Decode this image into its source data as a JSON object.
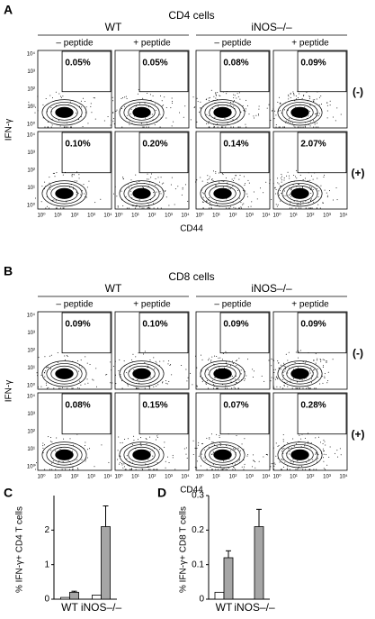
{
  "panels": [
    {
      "label": "A",
      "title": "CD4 cells",
      "groups": [
        "WT",
        "iNOS–/–"
      ],
      "conditions": [
        "– peptide",
        "+ peptide",
        "– peptide",
        "+ peptide"
      ],
      "rows": [
        {
          "label": "(-)",
          "percents": [
            "0.05%",
            "0.05%",
            "0.08%",
            "0.09%"
          ]
        },
        {
          "label": "(+)",
          "percents": [
            "0.10%",
            "0.20%",
            "0.14%",
            "2.07%"
          ]
        }
      ],
      "y_label": "IFN-γ",
      "x_label": "CD44",
      "ticks": [
        "10⁰",
        "10¹",
        "10²",
        "10³",
        "10⁴"
      ]
    },
    {
      "label": "B",
      "title": "CD8 cells",
      "groups": [
        "WT",
        "iNOS–/–"
      ],
      "conditions": [
        "– peptide",
        "+ peptide",
        "– peptide",
        "+ peptide"
      ],
      "rows": [
        {
          "label": "(-)",
          "percents": [
            "0.09%",
            "0.10%",
            "0.09%",
            "0.09%"
          ]
        },
        {
          "label": "(+)",
          "percents": [
            "0.08%",
            "0.15%",
            "0.07%",
            "0.28%"
          ]
        }
      ],
      "y_label": "IFN-γ",
      "x_label": "CD44",
      "ticks": [
        "10⁰",
        "10¹",
        "10²",
        "10³",
        "10⁴"
      ]
    }
  ],
  "chart_data": [
    {
      "type": "bar",
      "label": "C",
      "y_label": "% IFN-γ+ CD4 T cells",
      "categories": [
        "WT",
        "iNOS–/–"
      ],
      "series": [
        {
          "color": "#ffffff",
          "values": [
            0.05,
            0.12
          ],
          "errors": [
            null,
            null
          ]
        },
        {
          "color": "#a6a6a6",
          "values": [
            0.2,
            2.1
          ],
          "errors": [
            0.03,
            0.6
          ]
        }
      ],
      "ylim": [
        0,
        3
      ],
      "yticks": [
        0,
        1,
        2
      ]
    },
    {
      "type": "bar",
      "label": "D",
      "y_label": "% IFN-γ+ CD8 T cells",
      "categories": [
        "WT",
        "iNOS–/–"
      ],
      "series": [
        {
          "color": "#ffffff",
          "values": [
            0.02,
            0
          ],
          "errors": [
            null,
            null
          ]
        },
        {
          "color": "#a6a6a6",
          "values": [
            0.12,
            0.21
          ],
          "errors": [
            0.02,
            0.05
          ]
        }
      ],
      "ylim": [
        0,
        0.3
      ],
      "yticks": [
        0,
        0.1,
        0.2,
        0.3
      ]
    }
  ]
}
